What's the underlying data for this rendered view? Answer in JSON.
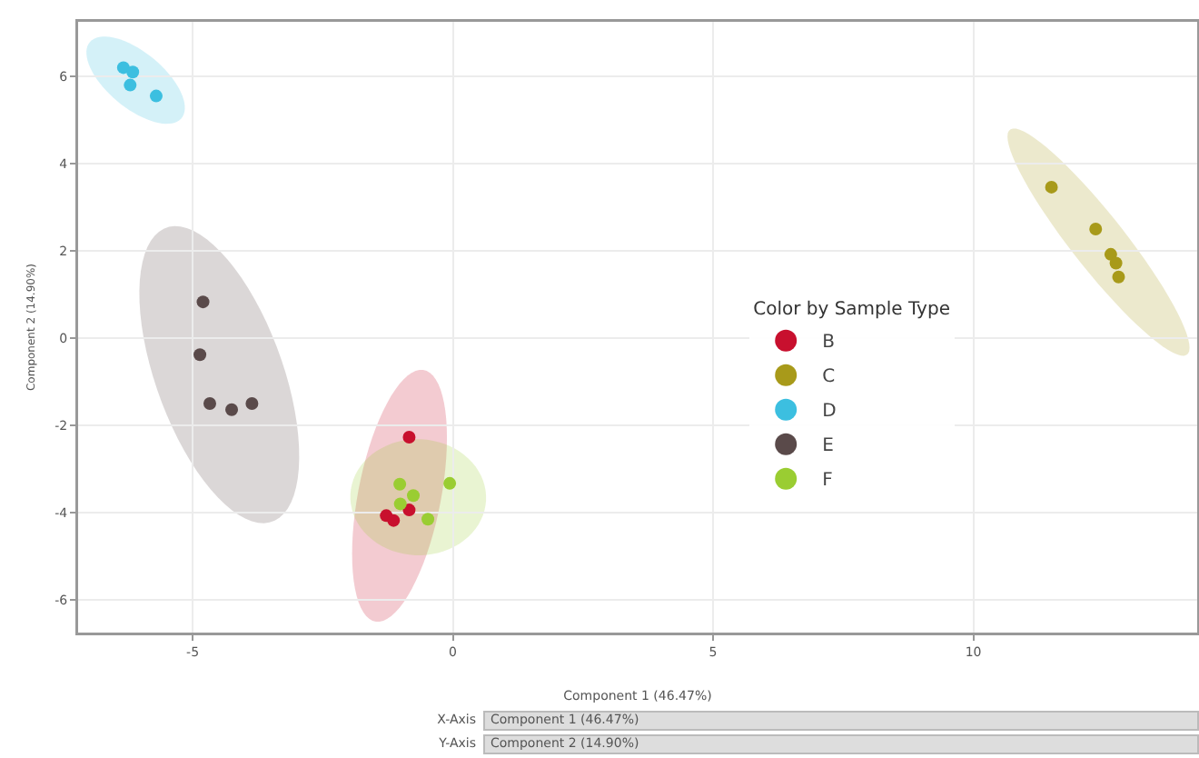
{
  "chart_data": {
    "type": "scatter",
    "xlabel": "Component 1 (46.47%)",
    "ylabel": "Component 2 (14.90%)",
    "legend_title": "Color by Sample Type",
    "series": [
      {
        "name": "B",
        "color": "#c8102e",
        "x": [
          -0.84,
          -1.28,
          -1.14,
          -0.84
        ],
        "values": [
          -2.27,
          -4.07,
          -4.18,
          -3.94
        ]
      },
      {
        "name": "C",
        "color": "#a89a1a",
        "x": [
          11.5,
          12.35,
          12.64,
          12.74,
          12.79
        ],
        "values": [
          3.46,
          2.5,
          1.92,
          1.72,
          1.4
        ]
      },
      {
        "name": "D",
        "color": "#3cbfe0",
        "x": [
          -6.33,
          -6.15,
          -6.2,
          -5.7
        ],
        "values": [
          6.2,
          6.1,
          5.8,
          5.55
        ]
      },
      {
        "name": "E",
        "color": "#5a4a4a",
        "x": [
          -4.8,
          -4.86,
          -4.67,
          -4.25,
          -3.86
        ],
        "values": [
          0.83,
          -0.38,
          -1.5,
          -1.64,
          -1.5
        ]
      },
      {
        "name": "F",
        "color": "#9acd32",
        "x": [
          -1.02,
          -0.76,
          -1.01,
          -0.06,
          -0.48
        ],
        "values": [
          -3.35,
          -3.61,
          -3.8,
          -3.33,
          -4.15
        ]
      }
    ],
    "xlim": [
      -7.2,
      14.3
    ],
    "ylim": [
      -6.75,
      7.25
    ],
    "xticks": [
      -5,
      0,
      5,
      10
    ],
    "yticks": [
      -6,
      -4,
      -2,
      0,
      2,
      4,
      6
    ],
    "grid": true,
    "legend": "right",
    "marker": "circle",
    "annotations": [
      "X-Axis",
      "Component 1 (46.47%)",
      "Y-Axis",
      "Component 2 (14.90%)"
    ]
  }
}
